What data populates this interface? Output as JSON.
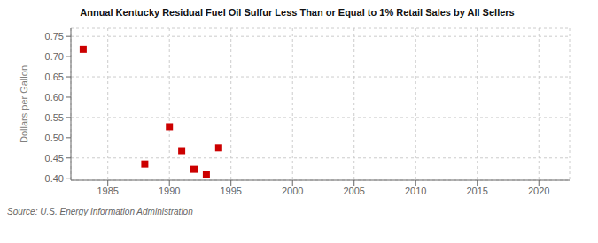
{
  "chart_data": {
    "type": "scatter",
    "title": "Annual Kentucky Residual Fuel Oil Sulfur Less Than or Equal to 1% Retail Sales by All Sellers",
    "ylabel": "Dollars per Gallon",
    "annotation": "Source: U.S. Energy Information Administration",
    "x": [
      1983,
      1988,
      1990,
      1991,
      1992,
      1993,
      1994
    ],
    "values": [
      0.718,
      0.435,
      0.527,
      0.468,
      0.422,
      0.41,
      0.475
    ],
    "color": "#cc0000",
    "marker": "square",
    "xlim": [
      1982,
      2022.5
    ],
    "ylim": [
      0.395,
      0.77
    ],
    "xticks": [
      1985,
      1990,
      1995,
      2000,
      2005,
      2010,
      2015,
      2020
    ],
    "yticks": [
      {
        "value": 0.4,
        "label": "0.40"
      },
      0.45,
      {
        "value": 0.5,
        "label": "0.50"
      },
      0.55,
      {
        "value": 0.6,
        "label": "0.60"
      },
      0.65,
      {
        "value": 0.7,
        "label": "0.70"
      },
      0.75
    ],
    "grid": true
  }
}
